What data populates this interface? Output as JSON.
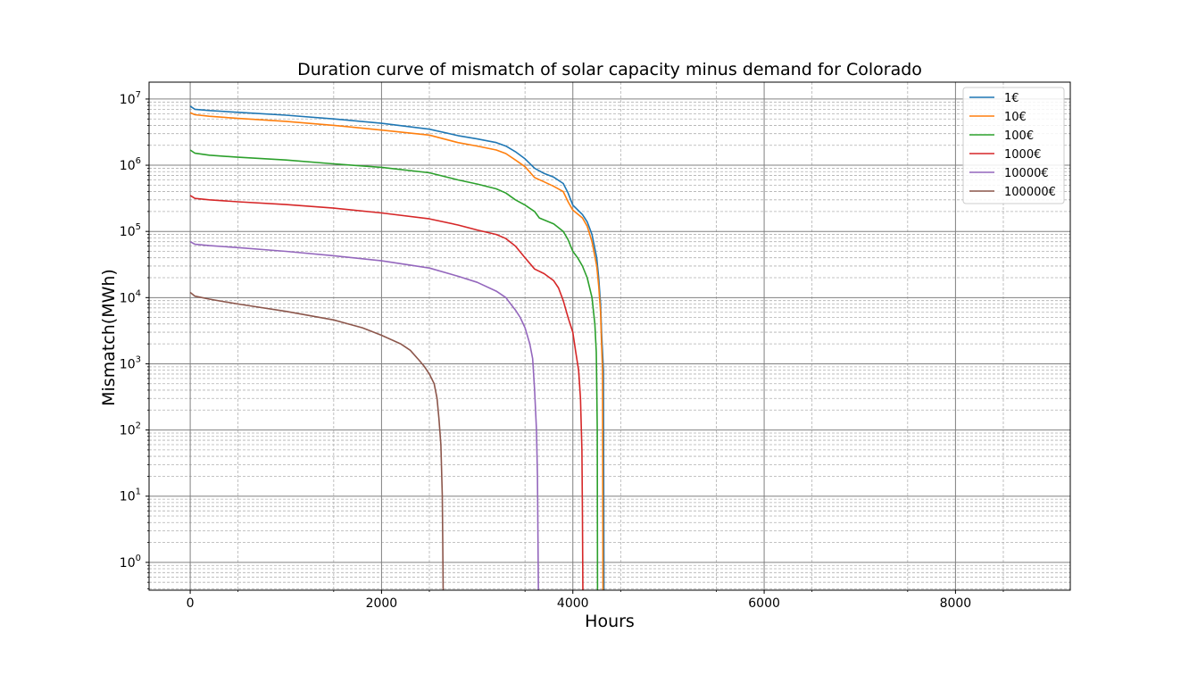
{
  "chart_data": {
    "type": "line",
    "title": "Duration curve of mismatch of solar capacity minus demand for Colorado",
    "xlabel": "Hours",
    "ylabel": "Mismatch(MWh)",
    "xlim": [
      -430,
      9200
    ],
    "xscale": "linear",
    "yscale": "log",
    "ylim": [
      0.38,
      18000000
    ],
    "xticks": [
      0,
      2000,
      4000,
      6000,
      8000
    ],
    "xtick_labels": [
      "0",
      "2000",
      "4000",
      "6000",
      "8000"
    ],
    "yticks_exp": [
      0,
      1,
      2,
      3,
      4,
      5,
      6,
      7
    ],
    "ytick_base": "10",
    "grid": true,
    "legend_position": "top-right",
    "colors": [
      "#1f77b4",
      "#ff7f0e",
      "#2ca02c",
      "#d62728",
      "#9467bd",
      "#8c564b"
    ],
    "series": [
      {
        "name": "1€",
        "x": [
          0,
          50,
          200,
          500,
          1000,
          1500,
          2000,
          2500,
          2800,
          3000,
          3200,
          3300,
          3400,
          3500,
          3600,
          3700,
          3800,
          3900,
          3950,
          4000,
          4100,
          4150,
          4200,
          4250,
          4270,
          4290,
          4300,
          4310,
          4320,
          4325
        ],
        "y": [
          7800000,
          7000000,
          6700000,
          6300000,
          5700000,
          5000000,
          4300000,
          3500000,
          2800000,
          2500000,
          2200000,
          1950000,
          1600000,
          1250000,
          900000,
          750000,
          660000,
          530000,
          380000,
          250000,
          180000,
          140000,
          90000,
          40000,
          20000,
          8000,
          3000,
          1500,
          800,
          0.3
        ]
      },
      {
        "name": "10€",
        "x": [
          0,
          50,
          200,
          500,
          1000,
          1500,
          2000,
          2500,
          2800,
          3000,
          3200,
          3300,
          3400,
          3500,
          3600,
          3700,
          3800,
          3900,
          3950,
          4000,
          4100,
          4150,
          4200,
          4250,
          4270,
          4290,
          4300,
          4310,
          4315
        ],
        "y": [
          6200000,
          5800000,
          5500000,
          5100000,
          4600000,
          4000000,
          3400000,
          2850000,
          2200000,
          1950000,
          1700000,
          1500000,
          1200000,
          950000,
          650000,
          560000,
          480000,
          400000,
          280000,
          210000,
          160000,
          120000,
          70000,
          30000,
          15000,
          6000,
          2000,
          800,
          0.3
        ]
      },
      {
        "name": "100€",
        "x": [
          0,
          50,
          200,
          500,
          1000,
          1500,
          2000,
          2500,
          2800,
          3000,
          3200,
          3300,
          3400,
          3500,
          3600,
          3650,
          3800,
          3900,
          3950,
          4000,
          4050,
          4100,
          4150,
          4200,
          4230,
          4245,
          4250,
          4255,
          4258
        ],
        "y": [
          1700000,
          1520000,
          1420000,
          1320000,
          1200000,
          1050000,
          930000,
          770000,
          600000,
          520000,
          440000,
          380000,
          300000,
          250000,
          200000,
          160000,
          130000,
          100000,
          75000,
          50000,
          40000,
          30000,
          20000,
          10000,
          4000,
          1500,
          500,
          100,
          0.3
        ]
      },
      {
        "name": "1000€",
        "x": [
          0,
          50,
          200,
          500,
          1000,
          1500,
          2000,
          2500,
          2800,
          3000,
          3200,
          3300,
          3400,
          3500,
          3600,
          3700,
          3800,
          3850,
          3900,
          3950,
          4000,
          4030,
          4060,
          4080,
          4095,
          4100,
          4105
        ],
        "y": [
          350000,
          315000,
          300000,
          280000,
          255000,
          225000,
          190000,
          155000,
          125000,
          105000,
          90000,
          78000,
          60000,
          40000,
          27000,
          23000,
          18000,
          14000,
          9000,
          5000,
          3000,
          1500,
          800,
          300,
          50,
          5,
          0.3
        ]
      },
      {
        "name": "10000€",
        "x": [
          0,
          50,
          200,
          500,
          1000,
          1500,
          2000,
          2500,
          2800,
          3000,
          3200,
          3300,
          3350,
          3400,
          3450,
          3500,
          3550,
          3580,
          3600,
          3620,
          3630,
          3635,
          3640
        ],
        "y": [
          70000,
          64000,
          61000,
          57000,
          50000,
          43000,
          36000,
          28000,
          21000,
          17000,
          12500,
          10000,
          8000,
          6500,
          5000,
          3500,
          2000,
          1200,
          400,
          100,
          20,
          3,
          0.3
        ]
      },
      {
        "name": "100000€",
        "x": [
          0,
          50,
          200,
          500,
          1000,
          1500,
          1800,
          2000,
          2200,
          2300,
          2400,
          2450,
          2500,
          2550,
          2580,
          2600,
          2620,
          2635,
          2640,
          2645
        ],
        "y": [
          12000,
          10500,
          9500,
          8000,
          6200,
          4600,
          3500,
          2700,
          2000,
          1600,
          1100,
          900,
          700,
          500,
          300,
          150,
          60,
          10,
          2,
          0.3
        ]
      }
    ]
  }
}
